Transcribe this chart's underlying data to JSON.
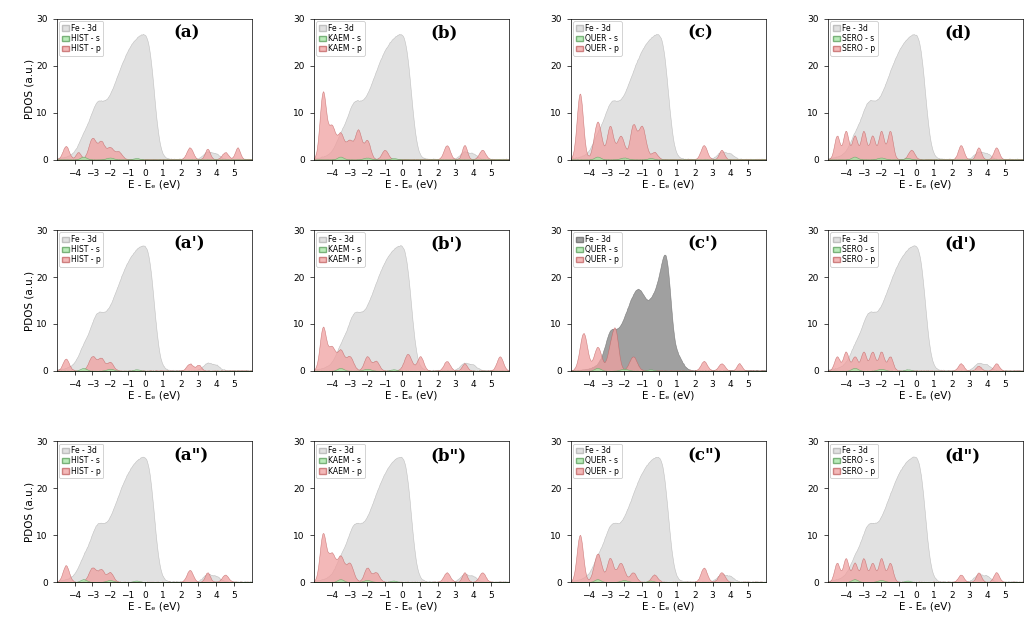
{
  "x_range": [
    -5,
    6
  ],
  "y_range": [
    0,
    30
  ],
  "xlabel": "E - Eₑ (eV)",
  "ylabel": "PDOS (a.u.)",
  "fe3d_color_normal": "#d8d8d8",
  "fe3d_color_dark": "#909090",
  "s_color": "#a8e6a8",
  "p_color": "#f0a0a0",
  "row_labels": [
    [
      "(a)",
      "(b)",
      "(c)",
      "(d)"
    ],
    [
      "(a')",
      "(b')",
      "(c')",
      "(d')"
    ],
    [
      "(a\")",
      "(b\")",
      "(c\")",
      "(d\")"
    ]
  ],
  "mol_order": [
    "HIST",
    "KAEM",
    "QUER",
    "SERO"
  ]
}
